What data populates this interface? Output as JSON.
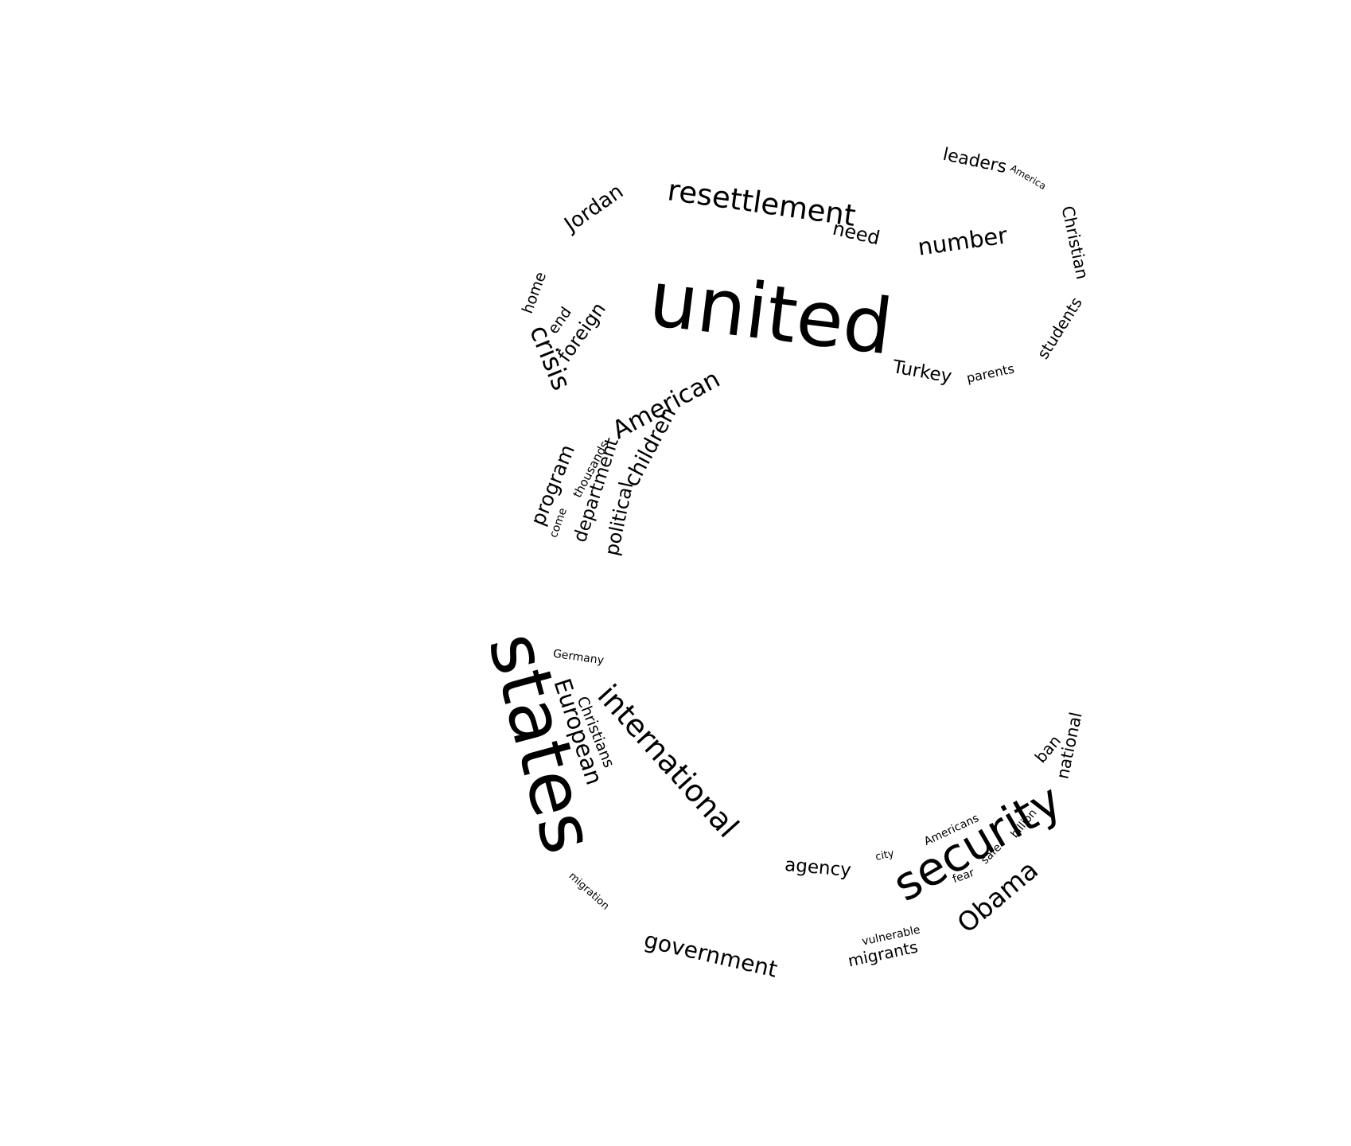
{
  "word_cloud": {
    "text_color": "#000000",
    "background_color": "#ffffff",
    "words": [
      {
        "text": "united",
        "weight": 100
      },
      {
        "text": "states",
        "weight": 95
      },
      {
        "text": "security",
        "weight": 62
      },
      {
        "text": "international",
        "weight": 40
      },
      {
        "text": "resettlement",
        "weight": 40
      },
      {
        "text": "American",
        "weight": 38
      },
      {
        "text": "crisis",
        "weight": 37
      },
      {
        "text": "Obama",
        "weight": 37
      },
      {
        "text": "European",
        "weight": 36
      },
      {
        "text": "number",
        "weight": 33
      },
      {
        "text": "government",
        "weight": 30
      },
      {
        "text": "Jordan",
        "weight": 28
      },
      {
        "text": "children",
        "weight": 28
      },
      {
        "text": "program",
        "weight": 27
      },
      {
        "text": "need",
        "weight": 26
      },
      {
        "text": "department",
        "weight": 25
      },
      {
        "text": "political",
        "weight": 25
      },
      {
        "text": "foreign",
        "weight": 25
      },
      {
        "text": "agency",
        "weight": 25
      },
      {
        "text": "Turkey",
        "weight": 24
      },
      {
        "text": "leaders",
        "weight": 23
      },
      {
        "text": "Christian",
        "weight": 22
      },
      {
        "text": "national",
        "weight": 22
      },
      {
        "text": "migrants",
        "weight": 22
      },
      {
        "text": "students",
        "weight": 21
      },
      {
        "text": "Christians",
        "weight": 21
      },
      {
        "text": "ban",
        "weight": 21
      },
      {
        "text": "end",
        "weight": 20
      },
      {
        "text": "home",
        "weight": 20
      },
      {
        "text": "thousands",
        "weight": 17
      },
      {
        "text": "parents",
        "weight": 17
      },
      {
        "text": "Americans",
        "weight": 16
      },
      {
        "text": "Germany",
        "weight": 15
      },
      {
        "text": "come",
        "weight": 15
      },
      {
        "text": "billion",
        "weight": 15
      },
      {
        "text": "vulnerable",
        "weight": 15
      },
      {
        "text": "fear",
        "weight": 15
      },
      {
        "text": "safe",
        "weight": 15
      },
      {
        "text": "migration",
        "weight": 14
      },
      {
        "text": "city",
        "weight": 14
      },
      {
        "text": "America",
        "weight": 13
      }
    ]
  }
}
